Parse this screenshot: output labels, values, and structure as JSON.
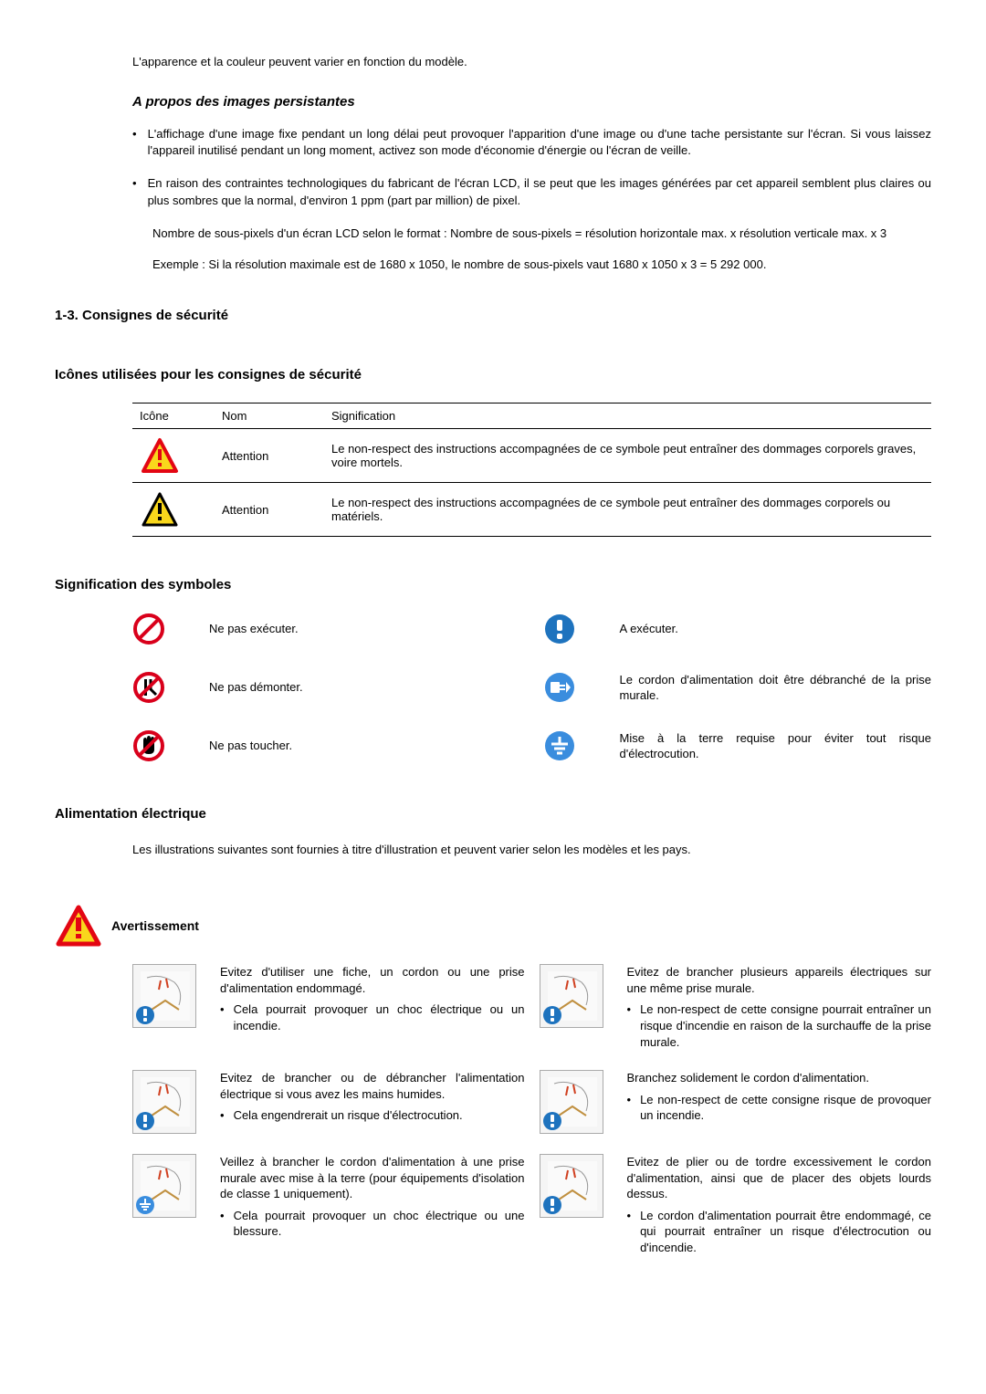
{
  "colors": {
    "text": "#000000",
    "bg": "#ffffff",
    "border": "#000000",
    "warn_red": "#e30613",
    "warn_yellow": "#f9d71c",
    "warn_border": "#e30613",
    "prohibit_red": "#d9001b",
    "must_blue": "#1e73be",
    "ground_blue": "#3a8dde"
  },
  "top_note": "L'apparence et la couleur peuvent varier en fonction du modèle.",
  "persist": {
    "heading": "A propos des images persistantes",
    "bullets": [
      "L'affichage d'une image fixe pendant un long délai peut provoquer l'apparition d'une image ou d'une tache persistante sur l'écran. Si vous laissez l'appareil inutilisé pendant un long moment, activez son mode d'économie d'énergie ou l'écran de veille.",
      "En raison des contraintes technologiques du fabricant de l'écran LCD, il se peut que les images générées par cet appareil semblent plus claires ou plus sombres que la normal, d'environ 1 ppm (part par million) de pixel."
    ],
    "para1": "Nombre de sous-pixels d'un écran LCD selon le format : Nombre de sous-pixels = résolution horizontale max. x résolution verticale max. x 3",
    "para2": "Exemple : Si la résolution maximale est de 1680 x 1050, le nombre de sous-pixels vaut 1680 x 1050 x 3 = 5 292 000."
  },
  "sec13": {
    "title": "1-3. Consignes de sécurité",
    "icons_title": "Icônes utilisées pour les consignes de sécurité",
    "table": {
      "headers": [
        "Icône",
        "Nom",
        "Signification"
      ],
      "rows": [
        {
          "nom": "Attention",
          "sig": "Le non-respect des instructions accompagnées de ce symbole peut entraîner des dommages corporels graves, voire mortels."
        },
        {
          "nom": "Attention",
          "sig": "Le non-respect des instructions accompagnées de ce symbole peut entraîner des dommages corporels ou matériels."
        }
      ]
    }
  },
  "symbols": {
    "title": "Signification des symboles",
    "items": [
      {
        "label": "Ne pas exécuter."
      },
      {
        "label": "A exécuter."
      },
      {
        "label": "Ne pas démonter."
      },
      {
        "label": "Le cordon d'alimentation doit être débranché de la prise murale."
      },
      {
        "label": "Ne pas toucher."
      },
      {
        "label": "Mise à la terre requise pour éviter tout risque d'électrocution."
      }
    ]
  },
  "power": {
    "title": "Alimentation électrique",
    "note": "Les illustrations suivantes sont fournies à titre d'illustration et peuvent varier selon les modèles et les pays.",
    "warning_label": "Avertissement",
    "cards": [
      {
        "lead": "Evitez d'utiliser une fiche, un cordon ou une prise d'alimentation endommagé.",
        "sub": "Cela pourrait provoquer un choc électrique ou un incendie.",
        "overlay": "must"
      },
      {
        "lead": "Evitez de brancher plusieurs appareils électriques sur une même prise murale.",
        "sub": "Le non-respect de cette consigne pourrait entraîner un risque d'incendie en raison de la surchauffe de la prise murale.",
        "overlay": "must"
      },
      {
        "lead": "Evitez de brancher ou de débrancher l'alimentation électrique si vous avez les mains humides.",
        "sub": "Cela engendrerait un risque d'électrocution.",
        "overlay": "must"
      },
      {
        "lead": "Branchez solidement le cordon d'alimentation.",
        "sub": "Le non-respect de cette consigne risque de provoquer un incendie.",
        "overlay": "must"
      },
      {
        "lead": "Veillez à brancher le cordon d'alimentation à une prise murale avec mise à la terre (pour équipements d'isolation de classe 1 uniquement).",
        "sub": "Cela pourrait provoquer un choc électrique ou une blessure.",
        "overlay": "ground"
      },
      {
        "lead": "Evitez de plier ou de tordre excessivement le cordon d'alimentation, ainsi que de placer des objets lourds dessus.",
        "sub": "Le cordon d'alimentation pourrait être endommagé, ce qui pourrait entraîner un risque d'électrocution ou d'incendie.",
        "overlay": "must"
      }
    ]
  }
}
